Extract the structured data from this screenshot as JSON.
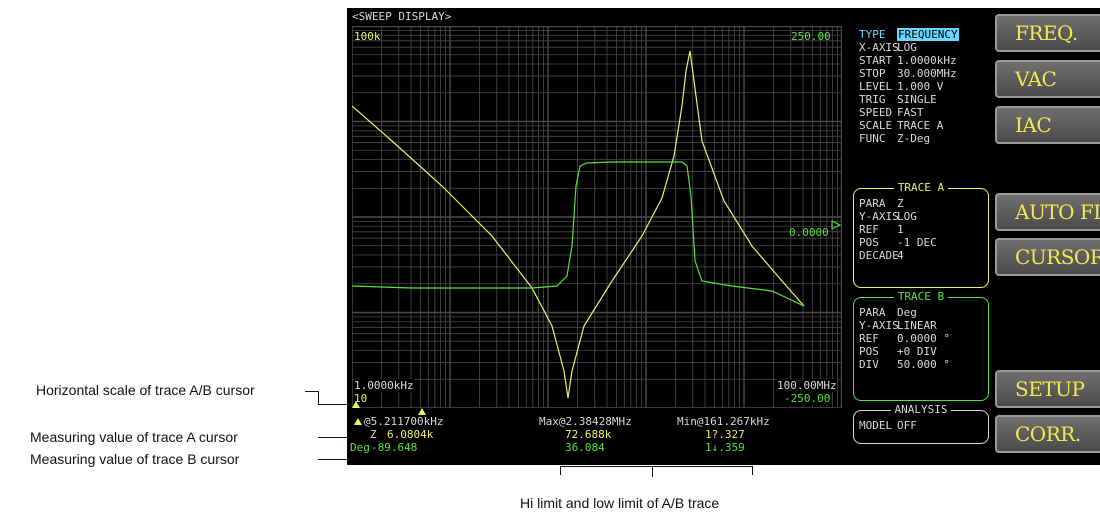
{
  "screen": {
    "title": "<SWEEP DISPLAY>",
    "plot": {
      "y_top_left": "100k",
      "y_bottom_left": "10",
      "x_left": "1.0000kHz",
      "x_right": "100.00MHz",
      "right_top": "250.00",
      "right_mid": "0.0000",
      "right_bottom": "-250.00"
    },
    "params": [
      {
        "key": "TYPE",
        "value": "FREQUENCY"
      },
      {
        "key": "X-AXIS",
        "value": "LOG"
      },
      {
        "key": "START",
        "value": "1.0000kHz"
      },
      {
        "key": "STOP",
        "value": "30.000MHz"
      },
      {
        "key": "LEVEL",
        "value": "1.000 V"
      },
      {
        "key": "TRIG",
        "value": "SINGLE"
      },
      {
        "key": "SPEED",
        "value": "FAST"
      },
      {
        "key": "SCALE",
        "value": "TRACE A"
      },
      {
        "key": "FUNC",
        "value": "Z-Deg"
      }
    ],
    "trace_a": {
      "title": "TRACE A",
      "rows": [
        {
          "key": "PARA",
          "value": "Z"
        },
        {
          "key": "Y-AXIS",
          "value": "LOG"
        },
        {
          "key": "REF",
          "value": "1"
        },
        {
          "key": "POS",
          "value": "-1 DEC"
        },
        {
          "key": "DECADE",
          "value": "4"
        }
      ]
    },
    "trace_b": {
      "title": "TRACE B",
      "rows": [
        {
          "key": "PARA",
          "value": "Deg"
        },
        {
          "key": "Y-AXIS",
          "value": "LINEAR"
        },
        {
          "key": "REF",
          "value": "0.0000 °"
        },
        {
          "key": "POS",
          "value": "+0 DIV"
        },
        {
          "key": "DIV",
          "value": "50.000 °"
        }
      ]
    },
    "analysis": {
      "title": "ANALYSIS",
      "rows": [
        {
          "key": "MODEL",
          "value": "OFF"
        }
      ]
    },
    "buttons": {
      "freq": "FREQ.",
      "vac": "VAC",
      "iac": "IAC",
      "auto_fit": "AUTO FIT",
      "cursor": "CURSOR",
      "setup": "SETUP",
      "corr": "CORR."
    },
    "readout": {
      "cursor_freq": "@5.211700kHz",
      "trace_a_label": "Z",
      "trace_a_value": "6.0804k",
      "trace_b_label": "Deg",
      "trace_b_value": "-89.648",
      "max_label": "Max@2.38428MHz",
      "max_a": "72.688k",
      "max_b": "36.084",
      "min_label": "Min@161.267kHz",
      "min_a": "1?.327",
      "min_b": "1↓.359"
    }
  },
  "annotations": {
    "horizontal_scale": "Horizontal scale of trace A/B cursor",
    "trace_a_value": "Measuring value of trace A cursor",
    "trace_b_value": "Measuring value of trace B cursor",
    "limits": "Hi limit and low limit of A/B trace"
  },
  "colors": {
    "screen_bg": "#000000",
    "grid": "#4a4a4a",
    "trace_a": "#f1ef6a",
    "trace_b": "#55e23c",
    "highlight": "#69d6ff",
    "button_text": "#f0ea50"
  }
}
